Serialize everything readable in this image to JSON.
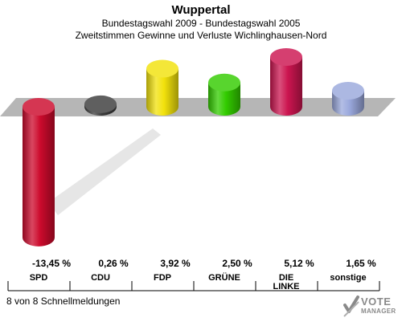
{
  "header": {
    "title": "Wuppertal",
    "subtitle1": "Bundestagswahl 2009 - Bundestagswahl 2005",
    "subtitle2": "Zweitstimmen Gewinne und Verluste Wichlinghausen-Nord"
  },
  "footer": {
    "status": "8 von 8 Schnellmeldungen"
  },
  "logo": {
    "line1": "VOTE",
    "line2": "MANAGER"
  },
  "chart_data": {
    "type": "bar",
    "title": "Wuppertal",
    "subtitle": "Zweitstimmen Gewinne und Verluste Wichlinghausen-Nord",
    "xlabel": "",
    "ylabel": "",
    "ylim": [
      -13.45,
      5.12
    ],
    "categories": [
      "SPD",
      "CDU",
      "FDP",
      "GRÜNE",
      "DIE LINKE",
      "sonstige"
    ],
    "category_lines": [
      [
        "SPD"
      ],
      [
        "CDU"
      ],
      [
        "FDP"
      ],
      [
        "GRÜNE"
      ],
      [
        "DIE",
        "LINKE"
      ],
      [
        "sonstige"
      ]
    ],
    "values": [
      -13.45,
      0.26,
      3.92,
      2.5,
      5.12,
      1.65
    ],
    "value_labels": [
      "-13,45 %",
      "0,26 %",
      "3,92 %",
      "2,50 %",
      "5,12 %",
      "1,65 %"
    ],
    "colors": [
      "#cc0a2c",
      "#3c3c3c",
      "#f2e20c",
      "#33cc00",
      "#cc1550",
      "#9aa8dc"
    ],
    "grid": false,
    "legend": "none"
  }
}
